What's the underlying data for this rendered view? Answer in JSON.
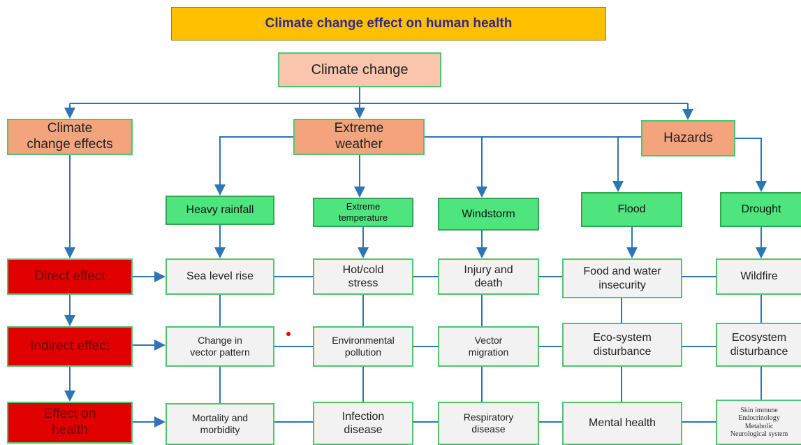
{
  "title": "Climate change effect on human health",
  "nodes": [
    {
      "lines": [
        "Climate change"
      ]
    },
    {
      "lines": [
        "Climate",
        "change effects"
      ]
    },
    {
      "lines": [
        "Extreme",
        "weather"
      ]
    },
    {
      "lines": [
        "Hazards"
      ]
    },
    {
      "lines": [
        "Heavy rainfall"
      ]
    },
    {
      "lines": [
        "Extreme",
        "temperature"
      ]
    },
    {
      "lines": [
        "Windstorm"
      ]
    },
    {
      "lines": [
        "Flood"
      ]
    },
    {
      "lines": [
        "Drought"
      ]
    },
    {
      "lines": [
        "Direct effect"
      ]
    },
    {
      "lines": [
        "Indirect effect"
      ]
    },
    {
      "lines": [
        "Effect on",
        "health"
      ]
    },
    {
      "lines": [
        "Sea level rise"
      ]
    },
    {
      "lines": [
        "Hot/cold",
        "stress"
      ]
    },
    {
      "lines": [
        "Injury and",
        "death"
      ]
    },
    {
      "lines": [
        "Food and water",
        "insecurity"
      ]
    },
    {
      "lines": [
        "Wildfire"
      ]
    },
    {
      "lines": [
        "Change in",
        "vector pattern"
      ]
    },
    {
      "lines": [
        "Environmental",
        "pollution"
      ]
    },
    {
      "lines": [
        "Vector",
        "migration"
      ]
    },
    {
      "lines": [
        "Eco-system",
        "disturbance"
      ]
    },
    {
      "lines": [
        "Ecosystem",
        "disturbance"
      ]
    },
    {
      "lines": [
        "Mortality and",
        "morbidity"
      ]
    },
    {
      "lines": [
        "Infection",
        "disease"
      ]
    },
    {
      "lines": [
        "Respiratory",
        "disease"
      ]
    },
    {
      "lines": [
        "Mental health"
      ]
    },
    {
      "lines": [
        "Skin immune",
        "Endocrinology",
        "Metabolic",
        "Neurological system"
      ]
    }
  ]
}
